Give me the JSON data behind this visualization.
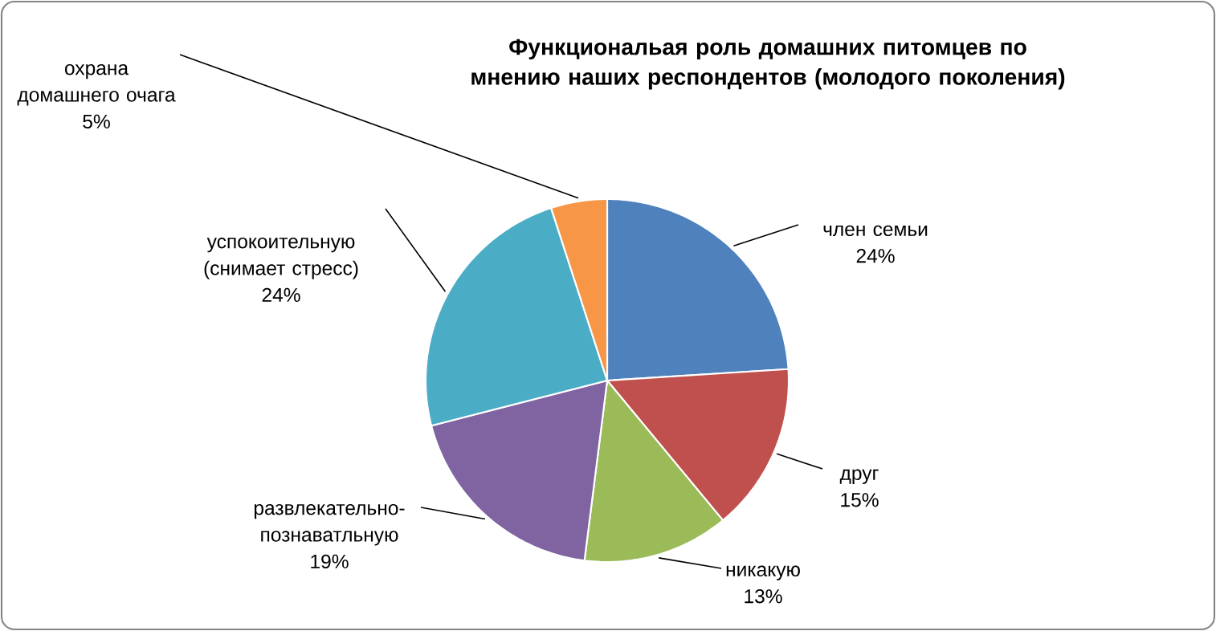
{
  "chart_data": {
    "type": "pie",
    "title": "Функциональая роль домашних питомцев по мнению наших респондентов (молодого поколения)",
    "categories": [
      "член семьи",
      "друг",
      "никакую",
      "развлекательно-познаватльную",
      "успокоительную (снимает стресс)",
      "охрана домашнего очага"
    ],
    "values": [
      24,
      15,
      13,
      19,
      24,
      5
    ],
    "value_labels": [
      "24%",
      "15%",
      "13%",
      "19%",
      "24%",
      "5%"
    ],
    "colors": [
      "#4f81bd",
      "#c0504d",
      "#9bbb59",
      "#8064a2",
      "#4bacc6",
      "#f79646"
    ]
  }
}
